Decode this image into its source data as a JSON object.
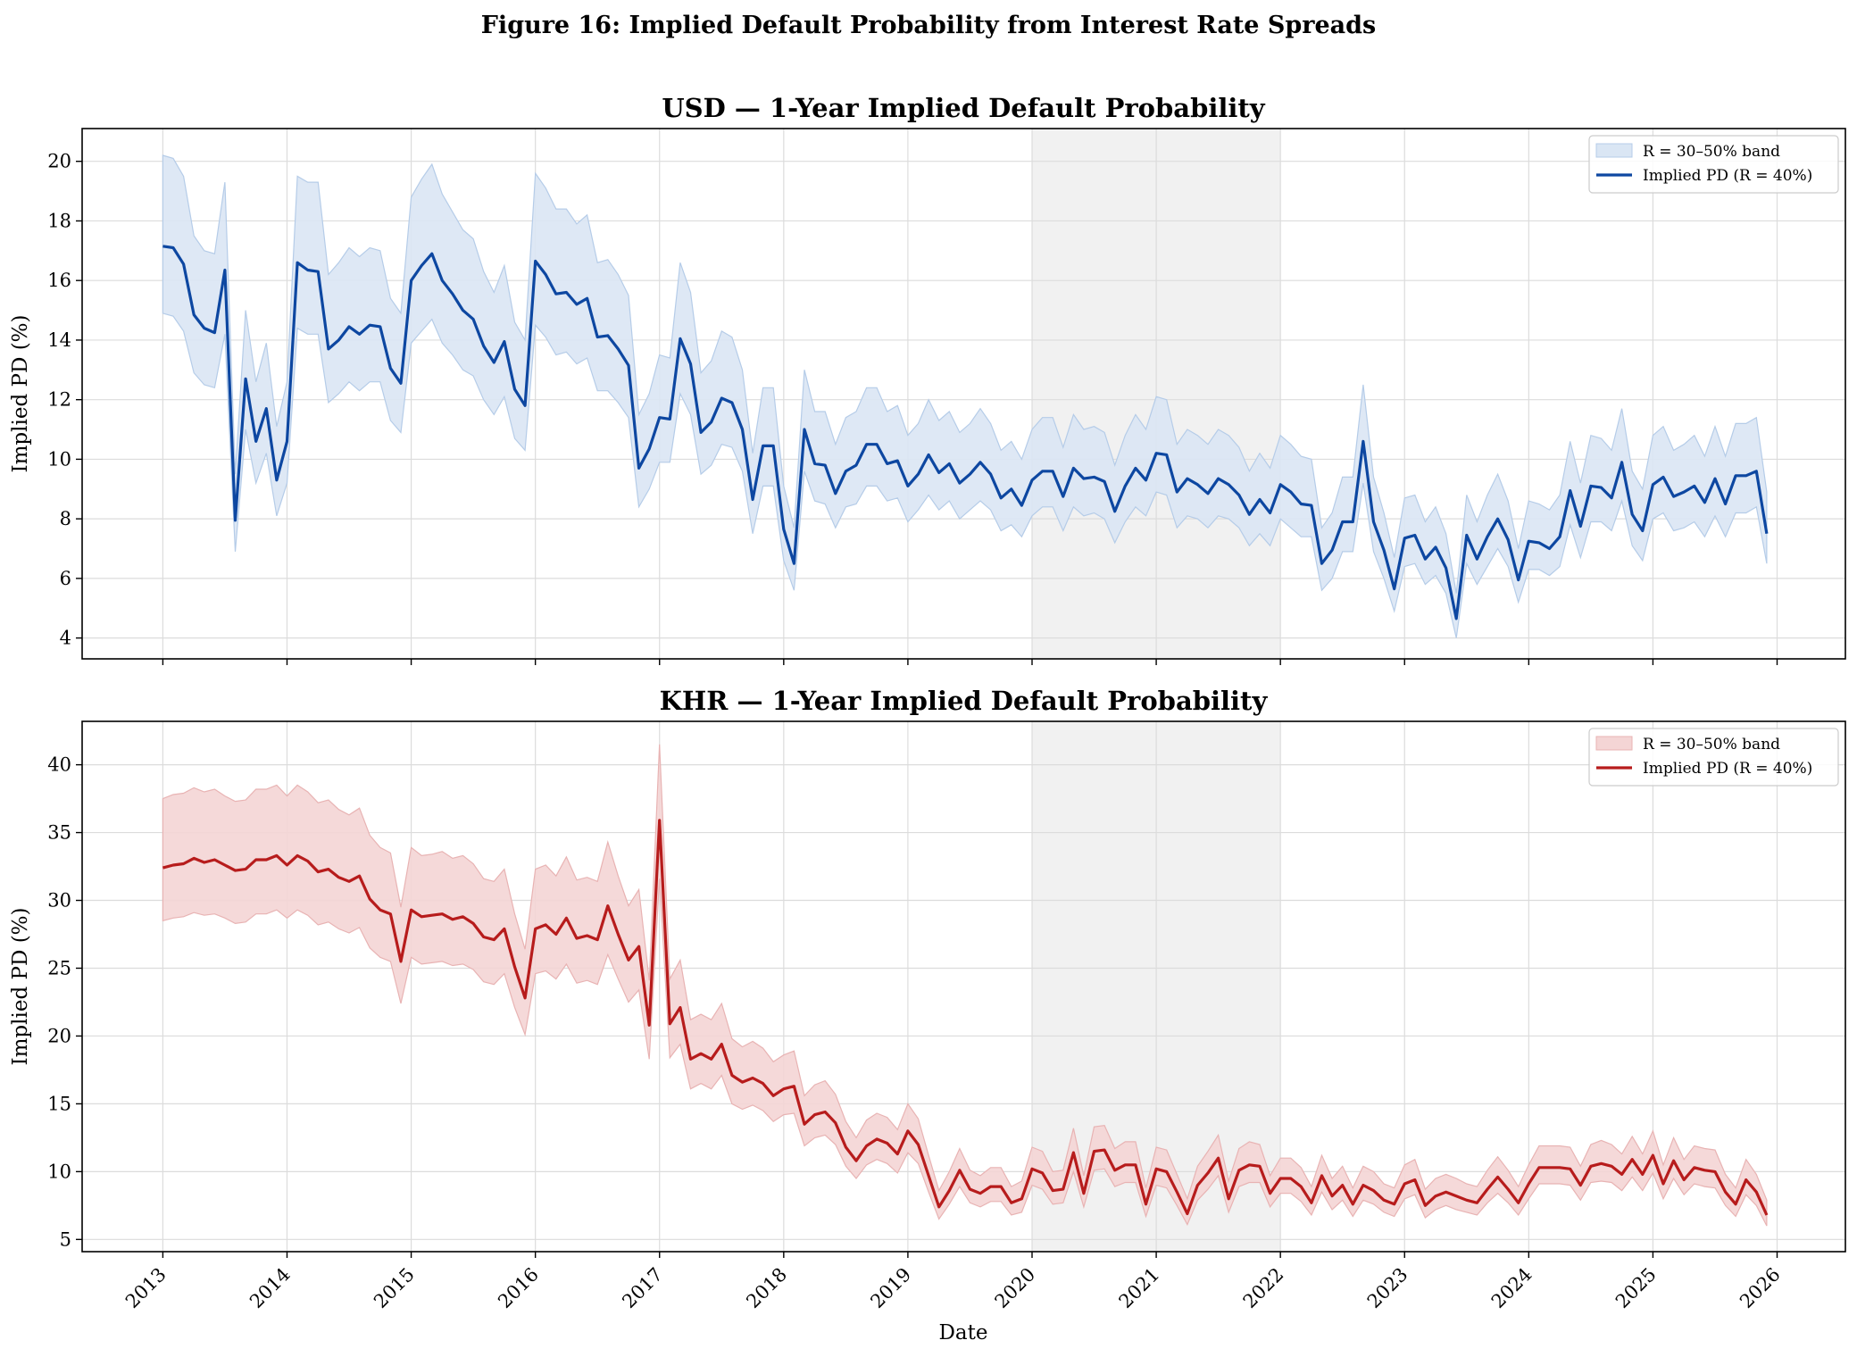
{
  "figure_title": "Figure 16: Implied Default Probability from Interest Rate Spreads",
  "shade_period": [
    2020,
    2022
  ],
  "x_axis": {
    "label": "Date",
    "range": [
      2012.35,
      2026.55
    ],
    "ticks": [
      2013,
      2014,
      2015,
      2016,
      2017,
      2018,
      2019,
      2020,
      2021,
      2022,
      2023,
      2024,
      2025,
      2026
    ],
    "tick_labels": [
      "2013",
      "2014",
      "2015",
      "2016",
      "2017",
      "2018",
      "2019",
      "2020",
      "2021",
      "2022",
      "2023",
      "2024",
      "2025",
      "2026"
    ]
  },
  "chart_data": [
    {
      "type": "line",
      "id": "usd",
      "title": "USD — 1-Year Implied Default Probability",
      "ylabel": "Implied PD (%)",
      "ylim": [
        3.3,
        21.1
      ],
      "yticks": [
        4,
        6,
        8,
        10,
        12,
        14,
        16,
        18,
        20
      ],
      "ytick_labels": [
        "4",
        "6",
        "8",
        "10",
        "12",
        "14",
        "16",
        "18",
        "20"
      ],
      "line_color": "#0d47a1",
      "band_fill": "#dae6f4",
      "band_edge": "#b5cce8",
      "legend": {
        "position": "upper right",
        "band_label": "R = 30–50% band",
        "line_label": "Implied PD (R = 40%)"
      },
      "x_start": 2013.0,
      "step_months": 1,
      "series": [
        {
          "name": "Implied PD (R = 40%)",
          "values": [
            17.15,
            17.1,
            16.55,
            14.85,
            14.4,
            14.25,
            16.35,
            7.95,
            12.7,
            10.6,
            11.7,
            9.3,
            10.6,
            16.6,
            16.35,
            16.3,
            13.7,
            14.0,
            14.45,
            14.2,
            14.5,
            14.45,
            13.05,
            12.55,
            16.0,
            16.5,
            16.9,
            16.0,
            15.55,
            15.0,
            14.7,
            13.8,
            13.25,
            13.95,
            12.35,
            11.8,
            16.65,
            16.2,
            15.55,
            15.6,
            15.2,
            15.4,
            14.1,
            14.15,
            13.7,
            13.15,
            9.7,
            10.35,
            11.4,
            11.35,
            14.05,
            13.2,
            10.9,
            11.25,
            12.05,
            11.9,
            11.0,
            8.65,
            10.45,
            10.45,
            7.65,
            6.5,
            11.0,
            9.85,
            9.8,
            8.85,
            9.6,
            9.8,
            10.5,
            10.5,
            9.85,
            9.95,
            9.1,
            9.5,
            10.15,
            9.55,
            9.85,
            9.2,
            9.5,
            9.9,
            9.5,
            8.7,
            9.0,
            8.45,
            9.3,
            9.6,
            9.6,
            8.75,
            9.7,
            9.35,
            9.4,
            9.25,
            8.25,
            9.1,
            9.7,
            9.3,
            10.2,
            10.15,
            8.9,
            9.35,
            9.15,
            8.85,
            9.35,
            9.15,
            8.8,
            8.15,
            8.65,
            8.2,
            9.15,
            8.9,
            8.5,
            8.45,
            6.5,
            6.95,
            7.9,
            7.9,
            10.6,
            7.9,
            6.95,
            5.65,
            7.35,
            7.45,
            6.65,
            7.05,
            6.35,
            4.65,
            7.45,
            6.65,
            7.4,
            8.0,
            7.3,
            5.95,
            7.25,
            7.2,
            7.0,
            7.4,
            8.95,
            7.75,
            9.1,
            9.05,
            8.7,
            9.9,
            8.15,
            7.6,
            9.15,
            9.4,
            8.75,
            8.9,
            9.1,
            8.55,
            9.35,
            8.5,
            9.45,
            9.45,
            9.6,
            7.5
          ]
        },
        {
          "name": "R = 30–50% band (upper)",
          "values": [
            20.2,
            20.1,
            19.5,
            17.5,
            17.0,
            16.9,
            19.3,
            9.5,
            15.0,
            12.6,
            13.9,
            11.1,
            12.6,
            19.5,
            19.3,
            19.3,
            16.2,
            16.6,
            17.1,
            16.8,
            17.1,
            17.0,
            15.4,
            14.9,
            18.8,
            19.4,
            19.9,
            18.9,
            18.3,
            17.7,
            17.4,
            16.3,
            15.6,
            16.5,
            14.6,
            14.0,
            19.6,
            19.1,
            18.4,
            18.4,
            17.9,
            18.2,
            16.6,
            16.7,
            16.2,
            15.5,
            11.5,
            12.2,
            13.5,
            13.4,
            16.6,
            15.6,
            12.9,
            13.3,
            14.3,
            14.1,
            13.0,
            10.2,
            12.4,
            12.4,
            9.1,
            7.7,
            13.0,
            11.6,
            11.6,
            10.5,
            11.4,
            11.6,
            12.4,
            12.4,
            11.6,
            11.8,
            10.8,
            11.2,
            12.0,
            11.3,
            11.6,
            10.9,
            11.2,
            11.7,
            11.2,
            10.3,
            10.6,
            10.0,
            11.0,
            11.4,
            11.4,
            10.4,
            11.5,
            11.0,
            11.1,
            10.9,
            9.8,
            10.8,
            11.5,
            11.0,
            12.1,
            12.0,
            10.5,
            11.0,
            10.8,
            10.5,
            11.0,
            10.8,
            10.4,
            9.6,
            10.2,
            9.7,
            10.8,
            10.5,
            10.1,
            10.0,
            7.7,
            8.2,
            9.4,
            9.4,
            12.5,
            9.4,
            8.2,
            6.7,
            8.7,
            8.8,
            7.9,
            8.4,
            7.5,
            5.5,
            8.8,
            7.9,
            8.8,
            9.5,
            8.6,
            7.0,
            8.6,
            8.5,
            8.3,
            8.8,
            10.6,
            9.2,
            10.8,
            10.7,
            10.3,
            11.7,
            9.6,
            9.0,
            10.8,
            11.1,
            10.3,
            10.5,
            10.8,
            10.1,
            11.1,
            10.1,
            11.2,
            11.2,
            11.4,
            8.9
          ]
        },
        {
          "name": "R = 30–50% band (lower)",
          "values": [
            14.9,
            14.8,
            14.3,
            12.9,
            12.5,
            12.4,
            14.2,
            6.9,
            11.0,
            9.2,
            10.2,
            8.1,
            9.2,
            14.4,
            14.2,
            14.2,
            11.9,
            12.2,
            12.6,
            12.3,
            12.6,
            12.6,
            11.3,
            10.9,
            13.9,
            14.3,
            14.7,
            13.9,
            13.5,
            13.0,
            12.8,
            12.0,
            11.5,
            12.1,
            10.7,
            10.3,
            14.5,
            14.1,
            13.5,
            13.6,
            13.2,
            13.4,
            12.3,
            12.3,
            11.9,
            11.4,
            8.4,
            9.0,
            9.9,
            9.9,
            12.2,
            11.5,
            9.5,
            9.8,
            10.5,
            10.4,
            9.6,
            7.5,
            9.1,
            9.1,
            6.6,
            5.6,
            9.6,
            8.6,
            8.5,
            7.7,
            8.4,
            8.5,
            9.1,
            9.1,
            8.6,
            8.7,
            7.9,
            8.3,
            8.8,
            8.3,
            8.6,
            8.0,
            8.3,
            8.6,
            8.3,
            7.6,
            7.8,
            7.4,
            8.1,
            8.4,
            8.4,
            7.6,
            8.4,
            8.1,
            8.2,
            8.0,
            7.2,
            7.9,
            8.4,
            8.1,
            8.9,
            8.8,
            7.7,
            8.1,
            8.0,
            7.7,
            8.1,
            8.0,
            7.7,
            7.1,
            7.5,
            7.1,
            8.0,
            7.7,
            7.4,
            7.4,
            5.6,
            6.0,
            6.9,
            6.9,
            9.2,
            6.9,
            6.0,
            4.9,
            6.4,
            6.5,
            5.8,
            6.1,
            5.5,
            4.0,
            6.5,
            5.8,
            6.4,
            7.0,
            6.4,
            5.2,
            6.3,
            6.3,
            6.1,
            6.4,
            7.8,
            6.7,
            7.9,
            7.9,
            7.6,
            8.6,
            7.1,
            6.6,
            8.0,
            8.2,
            7.6,
            7.7,
            7.9,
            7.4,
            8.1,
            7.4,
            8.2,
            8.2,
            8.4,
            6.5
          ]
        }
      ]
    },
    {
      "type": "line",
      "id": "khr",
      "title": "KHR — 1-Year Implied Default Probability",
      "ylabel": "Implied PD (%)",
      "ylim": [
        4.1,
        43.2
      ],
      "yticks": [
        5,
        10,
        15,
        20,
        25,
        30,
        35,
        40
      ],
      "ytick_labels": [
        "5",
        "10",
        "15",
        "20",
        "25",
        "30",
        "35",
        "40"
      ],
      "line_color": "#b71c1c",
      "band_fill": "#f4d5d5",
      "band_edge": "#e8b3b3",
      "legend": {
        "position": "upper right",
        "band_label": "R = 30–50% band",
        "line_label": "Implied PD (R = 40%)"
      },
      "x_start": 2013.0,
      "step_months": 1,
      "series": [
        {
          "name": "Implied PD (R = 40%)",
          "values": [
            32.4,
            32.6,
            32.7,
            33.1,
            32.8,
            33.0,
            32.6,
            32.2,
            32.3,
            33.0,
            33.0,
            33.3,
            32.6,
            33.3,
            32.9,
            32.1,
            32.3,
            31.7,
            31.4,
            31.8,
            30.1,
            29.3,
            29.0,
            25.5,
            29.3,
            28.8,
            28.9,
            29.0,
            28.6,
            28.8,
            28.3,
            27.3,
            27.1,
            27.9,
            25.1,
            22.8,
            27.9,
            28.2,
            27.5,
            28.7,
            27.2,
            27.4,
            27.1,
            29.6,
            27.5,
            25.6,
            26.6,
            20.8,
            35.9,
            20.9,
            22.1,
            18.3,
            18.7,
            18.3,
            19.4,
            17.1,
            16.6,
            16.9,
            16.5,
            15.6,
            16.1,
            16.3,
            13.5,
            14.2,
            14.4,
            13.6,
            11.8,
            10.8,
            11.9,
            12.4,
            12.1,
            11.3,
            13.0,
            12.0,
            9.7,
            7.4,
            8.6,
            10.1,
            8.7,
            8.4,
            8.9,
            8.9,
            7.7,
            8.0,
            10.2,
            9.9,
            8.6,
            8.7,
            11.4,
            8.4,
            11.5,
            11.6,
            10.1,
            10.5,
            10.5,
            7.6,
            10.2,
            10.0,
            8.5,
            6.9,
            9.0,
            9.9,
            11.0,
            8.0,
            10.1,
            10.5,
            10.4,
            8.4,
            9.5,
            9.5,
            8.9,
            7.7,
            9.7,
            8.2,
            9.0,
            7.6,
            9.0,
            8.6,
            7.9,
            7.6,
            9.1,
            9.4,
            7.5,
            8.2,
            8.5,
            8.2,
            7.9,
            7.7,
            8.7,
            9.6,
            8.7,
            7.7,
            9.1,
            10.3,
            10.3,
            10.3,
            10.2,
            9.0,
            10.4,
            10.6,
            10.4,
            9.8,
            10.9,
            9.8,
            11.2,
            9.1,
            10.8,
            9.4,
            10.3,
            10.1,
            10.0,
            8.5,
            7.6,
            9.4,
            8.5,
            6.8
          ]
        },
        {
          "name": "R = 30–50% band (upper)",
          "values": [
            37.5,
            37.8,
            37.9,
            38.3,
            38.0,
            38.2,
            37.7,
            37.3,
            37.4,
            38.2,
            38.2,
            38.5,
            37.7,
            38.5,
            38.0,
            37.2,
            37.4,
            36.7,
            36.3,
            36.8,
            34.8,
            33.9,
            33.5,
            29.5,
            33.9,
            33.3,
            33.4,
            33.6,
            33.1,
            33.3,
            32.7,
            31.6,
            31.4,
            32.3,
            29.0,
            26.4,
            32.3,
            32.6,
            31.8,
            33.2,
            31.5,
            31.7,
            31.4,
            34.3,
            31.8,
            29.6,
            30.8,
            24.1,
            41.5,
            24.2,
            25.6,
            21.2,
            21.6,
            21.2,
            22.4,
            19.8,
            19.2,
            19.6,
            19.1,
            18.1,
            18.6,
            18.9,
            15.6,
            16.4,
            16.7,
            15.7,
            13.7,
            12.5,
            13.8,
            14.3,
            14.0,
            13.1,
            15.0,
            13.9,
            11.2,
            8.6,
            10.0,
            11.7,
            10.1,
            9.7,
            10.3,
            10.3,
            8.9,
            9.3,
            11.8,
            11.5,
            10.0,
            10.1,
            13.2,
            9.7,
            13.3,
            13.4,
            11.7,
            12.2,
            12.2,
            8.8,
            11.8,
            11.6,
            9.8,
            8.0,
            10.4,
            11.5,
            12.7,
            9.3,
            11.7,
            12.2,
            12.0,
            9.7,
            11.0,
            11.0,
            10.3,
            8.9,
            11.2,
            9.5,
            10.4,
            8.8,
            10.4,
            10.0,
            9.1,
            8.8,
            10.5,
            10.9,
            8.7,
            9.5,
            9.8,
            9.5,
            9.1,
            8.9,
            10.1,
            11.1,
            10.1,
            8.9,
            10.5,
            11.9,
            11.9,
            11.9,
            11.8,
            10.4,
            12.0,
            12.3,
            12.0,
            11.3,
            12.6,
            11.3,
            13.0,
            10.5,
            12.5,
            10.9,
            11.9,
            11.7,
            11.6,
            9.8,
            8.8,
            10.9,
            9.8,
            7.9
          ]
        },
        {
          "name": "R = 30–50% band (lower)",
          "values": [
            28.5,
            28.7,
            28.8,
            29.1,
            28.9,
            29.0,
            28.7,
            28.3,
            28.4,
            29.0,
            29.0,
            29.3,
            28.7,
            29.3,
            28.9,
            28.2,
            28.4,
            27.9,
            27.6,
            28.0,
            26.5,
            25.8,
            25.5,
            22.4,
            25.8,
            25.3,
            25.4,
            25.5,
            25.2,
            25.3,
            24.9,
            24.0,
            23.8,
            24.6,
            22.1,
            20.1,
            24.6,
            24.8,
            24.2,
            25.3,
            23.9,
            24.1,
            23.8,
            26.0,
            24.2,
            22.5,
            23.4,
            18.3,
            31.6,
            18.4,
            19.4,
            16.1,
            16.5,
            16.1,
            17.1,
            15.0,
            14.6,
            14.9,
            14.5,
            13.7,
            14.2,
            14.3,
            11.9,
            12.5,
            12.7,
            12.0,
            10.4,
            9.5,
            10.5,
            10.9,
            10.6,
            9.9,
            11.4,
            10.6,
            8.5,
            6.5,
            7.6,
            8.9,
            7.7,
            7.4,
            7.8,
            7.8,
            6.8,
            7.0,
            9.0,
            8.7,
            7.6,
            7.7,
            10.0,
            7.4,
            10.1,
            10.2,
            8.9,
            9.2,
            9.2,
            6.7,
            9.0,
            8.8,
            7.5,
            6.1,
            7.9,
            8.7,
            9.7,
            7.0,
            8.9,
            9.2,
            9.2,
            7.4,
            8.4,
            8.4,
            7.8,
            6.8,
            8.5,
            7.2,
            7.9,
            6.7,
            7.9,
            7.6,
            7.0,
            6.7,
            8.0,
            8.3,
            6.6,
            7.2,
            7.5,
            7.2,
            7.0,
            6.8,
            7.7,
            8.4,
            7.7,
            6.8,
            8.0,
            9.1,
            9.1,
            9.1,
            9.0,
            7.9,
            9.2,
            9.3,
            9.2,
            8.6,
            9.6,
            8.6,
            9.9,
            8.0,
            9.5,
            8.3,
            9.1,
            8.9,
            8.8,
            7.5,
            6.7,
            8.3,
            7.5,
            6.0
          ]
        }
      ]
    }
  ]
}
